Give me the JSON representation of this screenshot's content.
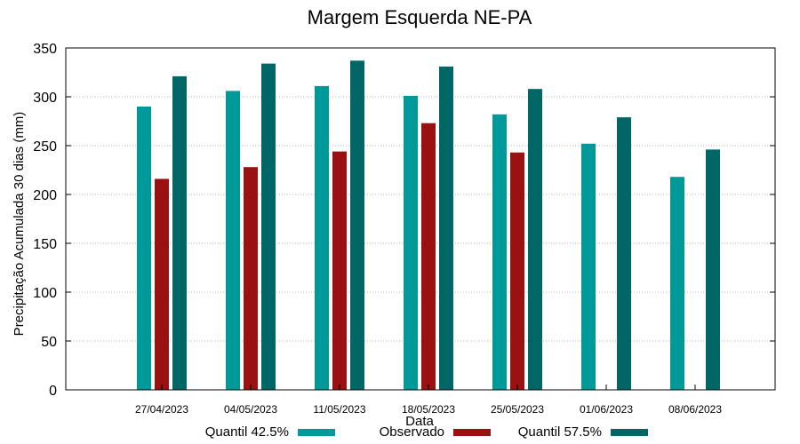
{
  "chart_data": {
    "type": "bar",
    "title": "Margem Esquerda NE-PA",
    "xlabel": "Data",
    "ylabel": "Precipitação Acumulada 30 dias (mm)",
    "ylim": [
      0,
      350
    ],
    "yticks": [
      0,
      50,
      100,
      150,
      200,
      250,
      300,
      350
    ],
    "grid": true,
    "legend_position": "bottom",
    "categories": [
      "27/04/2023",
      "04/05/2023",
      "11/05/2023",
      "18/05/2023",
      "25/05/2023",
      "01/06/2023",
      "08/06/2023"
    ],
    "series": [
      {
        "name": "Quantil 42.5%",
        "color": "#009999",
        "values": [
          290,
          306,
          311,
          301,
          282,
          252,
          218
        ]
      },
      {
        "name": "Observado",
        "color": "#991111",
        "values": [
          216,
          228,
          244,
          273,
          243,
          null,
          null
        ]
      },
      {
        "name": "Quantil 57.5%",
        "color": "#006666",
        "values": [
          321,
          334,
          337,
          331,
          308,
          279,
          246
        ]
      }
    ]
  }
}
